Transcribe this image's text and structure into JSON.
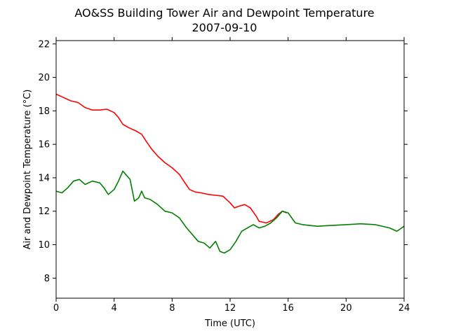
{
  "chart_data": {
    "type": "line",
    "title": "AO&SS Building Tower Air and Dewpoint Temperature",
    "subtitle": "2007-09-10",
    "xlabel": "Time (UTC)",
    "ylabel": "Air and Dewpoint Temperature (°C)",
    "xlim": [
      0,
      24
    ],
    "ylim": [
      6.8,
      22.2
    ],
    "xticks": [
      0,
      4,
      8,
      12,
      16,
      20,
      24
    ],
    "yticks": [
      8,
      10,
      12,
      14,
      16,
      18,
      20,
      22
    ],
    "grid": false,
    "legend": "none",
    "series": [
      {
        "color": "#ff0000",
        "x": [
          0,
          0.5,
          1,
          1.5,
          2,
          2.5,
          3,
          3.5,
          4,
          4.3,
          4.6,
          5,
          5.5,
          5.9,
          6.2,
          6.6,
          7,
          7.5,
          8,
          8.5,
          8.8,
          9.2,
          9.6,
          10,
          10.5,
          11,
          11.5,
          12,
          12.3,
          12.6,
          13,
          13.4,
          13.8,
          14,
          14.5,
          15,
          15.3,
          15.6,
          15.9
        ],
        "y": [
          19.0,
          18.8,
          18.6,
          18.5,
          18.2,
          18.05,
          18.05,
          18.1,
          17.9,
          17.6,
          17.2,
          17.0,
          16.8,
          16.6,
          16.2,
          15.7,
          15.3,
          14.9,
          14.6,
          14.2,
          13.8,
          13.3,
          13.15,
          13.1,
          13.0,
          12.95,
          12.9,
          12.5,
          12.2,
          12.3,
          12.4,
          12.2,
          11.7,
          11.4,
          11.3,
          11.5,
          11.8,
          12.0,
          11.9
        ]
      },
      {
        "color": "#008000",
        "x": [
          0,
          0.4,
          0.8,
          1.2,
          1.6,
          2,
          2.5,
          3,
          3.3,
          3.6,
          4,
          4.3,
          4.6,
          4.8,
          5.1,
          5.4,
          5.7,
          5.9,
          6.1,
          6.5,
          7,
          7.5,
          8,
          8.5,
          9,
          9.4,
          9.8,
          10.2,
          10.6,
          11,
          11.3,
          11.6,
          12,
          12.4,
          12.8,
          13.2,
          13.6,
          14,
          14.4,
          14.8,
          15.2,
          15.6,
          16,
          16.5,
          17,
          18,
          19,
          20,
          21,
          22,
          23,
          23.5,
          24
        ],
        "y": [
          13.2,
          13.1,
          13.4,
          13.8,
          13.9,
          13.6,
          13.8,
          13.7,
          13.4,
          13.0,
          13.3,
          13.8,
          14.4,
          14.2,
          13.9,
          12.6,
          12.8,
          13.2,
          12.8,
          12.7,
          12.4,
          12.0,
          11.9,
          11.6,
          11.0,
          10.6,
          10.2,
          10.1,
          9.8,
          10.2,
          9.6,
          9.5,
          9.7,
          10.2,
          10.8,
          11.0,
          11.2,
          11.0,
          11.1,
          11.3,
          11.6,
          12.0,
          11.9,
          11.3,
          11.2,
          11.1,
          11.15,
          11.2,
          11.25,
          11.2,
          11.0,
          10.8,
          11.1
        ]
      }
    ]
  }
}
